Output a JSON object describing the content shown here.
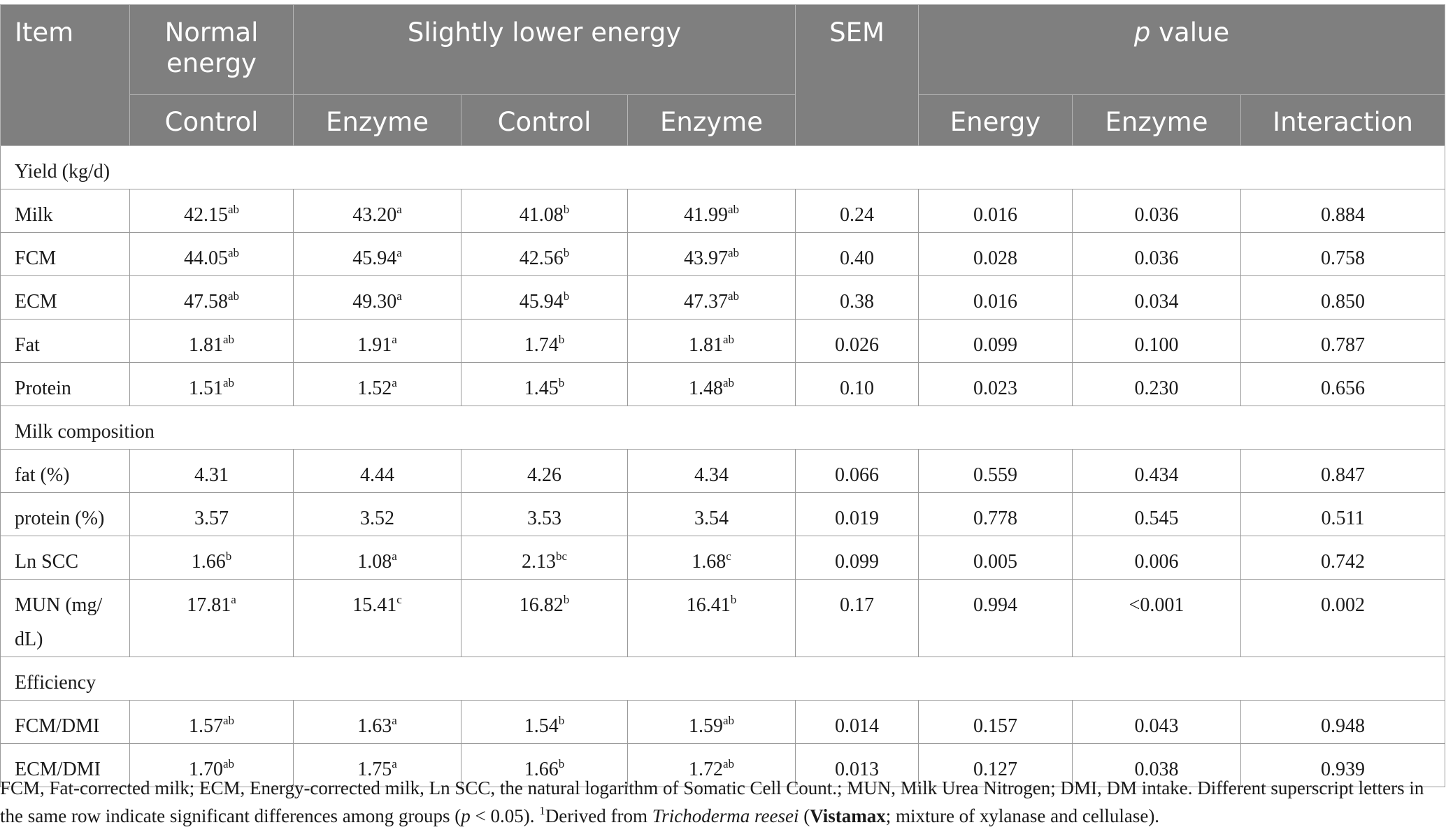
{
  "header": {
    "item": "Item",
    "normal_energy": "Normal energy",
    "slightly_lower_energy": "Slightly lower energy",
    "sem": "SEM",
    "p_value_p": "p",
    "p_value_rest": " value",
    "sub": [
      "Control",
      "Enzyme",
      "Control",
      "Enzyme",
      "Energy",
      "Enzyme",
      "Interaction"
    ]
  },
  "sections": {
    "yield": "Yield (kg/d)",
    "composition": "Milk composition",
    "efficiency": "Efficiency"
  },
  "rows": {
    "milk": {
      "label": "Milk",
      "v": [
        "42.15",
        "43.20",
        "41.08",
        "41.99"
      ],
      "s": [
        "ab",
        "a",
        "b",
        "ab"
      ],
      "sem": "0.24",
      "p": [
        "0.016",
        "0.036",
        "0.884"
      ]
    },
    "fcm": {
      "label": "FCM",
      "v": [
        "44.05",
        "45.94",
        "42.56",
        "43.97"
      ],
      "s": [
        "ab",
        "a",
        "b",
        "ab"
      ],
      "sem": "0.40",
      "p": [
        "0.028",
        "0.036",
        "0.758"
      ]
    },
    "ecm": {
      "label": "ECM",
      "v": [
        "47.58",
        "49.30",
        "45.94",
        "47.37"
      ],
      "s": [
        "ab",
        "a",
        "b",
        "ab"
      ],
      "sem": "0.38",
      "p": [
        "0.016",
        "0.034",
        "0.850"
      ]
    },
    "fat": {
      "label": "Fat",
      "v": [
        "1.81",
        "1.91",
        "1.74",
        "1.81"
      ],
      "s": [
        "ab",
        "a",
        "b",
        "ab"
      ],
      "sem": "0.026",
      "p": [
        "0.099",
        "0.100",
        "0.787"
      ]
    },
    "protein": {
      "label": "Protein",
      "v": [
        "1.51",
        "1.52",
        "1.45",
        "1.48"
      ],
      "s": [
        "ab",
        "a",
        "b",
        "ab"
      ],
      "sem": "0.10",
      "p": [
        "0.023",
        "0.230",
        "0.656"
      ]
    },
    "fatpct": {
      "label": "fat (%)",
      "v": [
        "4.31",
        "4.44",
        "4.26",
        "4.34"
      ],
      "s": [
        "",
        "",
        "",
        ""
      ],
      "sem": "0.066",
      "p": [
        "0.559",
        "0.434",
        "0.847"
      ]
    },
    "protpct": {
      "label": "protein (%)",
      "v": [
        "3.57",
        "3.52",
        "3.53",
        "3.54"
      ],
      "s": [
        "",
        "",
        "",
        ""
      ],
      "sem": "0.019",
      "p": [
        "0.778",
        "0.545",
        "0.511"
      ]
    },
    "lnscc": {
      "label": "Ln SCC",
      "v": [
        "1.66",
        "1.08",
        "2.13",
        "1.68"
      ],
      "s": [
        "b",
        "a",
        "bc",
        "c"
      ],
      "sem": "0.099",
      "p": [
        "0.005",
        "0.006",
        "0.742"
      ]
    },
    "mun": {
      "label_a": "MUN (mg/",
      "label_b": "dL)",
      "v": [
        "17.81",
        "15.41",
        "16.82",
        "16.41"
      ],
      "s": [
        "a",
        "c",
        "b",
        "b"
      ],
      "sem": "0.17",
      "p": [
        "0.994",
        "<0.001",
        "0.002"
      ]
    },
    "fcmdmi": {
      "label": "FCM/DMI",
      "v": [
        "1.57",
        "1.63",
        "1.54",
        "1.59"
      ],
      "s": [
        "ab",
        "a",
        "b",
        "ab"
      ],
      "sem": "0.014",
      "p": [
        "0.157",
        "0.043",
        "0.948"
      ]
    },
    "ecmdmi": {
      "label": "ECM/DMI",
      "v": [
        "1.70",
        "1.75",
        "1.66",
        "1.72"
      ],
      "s": [
        "ab",
        "a",
        "b",
        "ab"
      ],
      "sem": "0.013",
      "p": [
        "0.127",
        "0.038",
        "0.939"
      ]
    }
  },
  "footnote": {
    "part1": "FCM, Fat-corrected milk; ECM, Energy-corrected milk, Ln SCC, the natural logarithm of Somatic Cell Count.; MUN, Milk Urea Nitrogen; DMI, DM intake. Different superscript letters in the same row indicate significant differences among groups (",
    "p": "p",
    "part2": " < 0.05). ",
    "sup1": "1",
    "part3": "Derived from ",
    "species": "Trichoderma reesei",
    "part4": " (",
    "brand": "Vistamax",
    "part5": "; mixture of xylanase and cellulase)."
  }
}
